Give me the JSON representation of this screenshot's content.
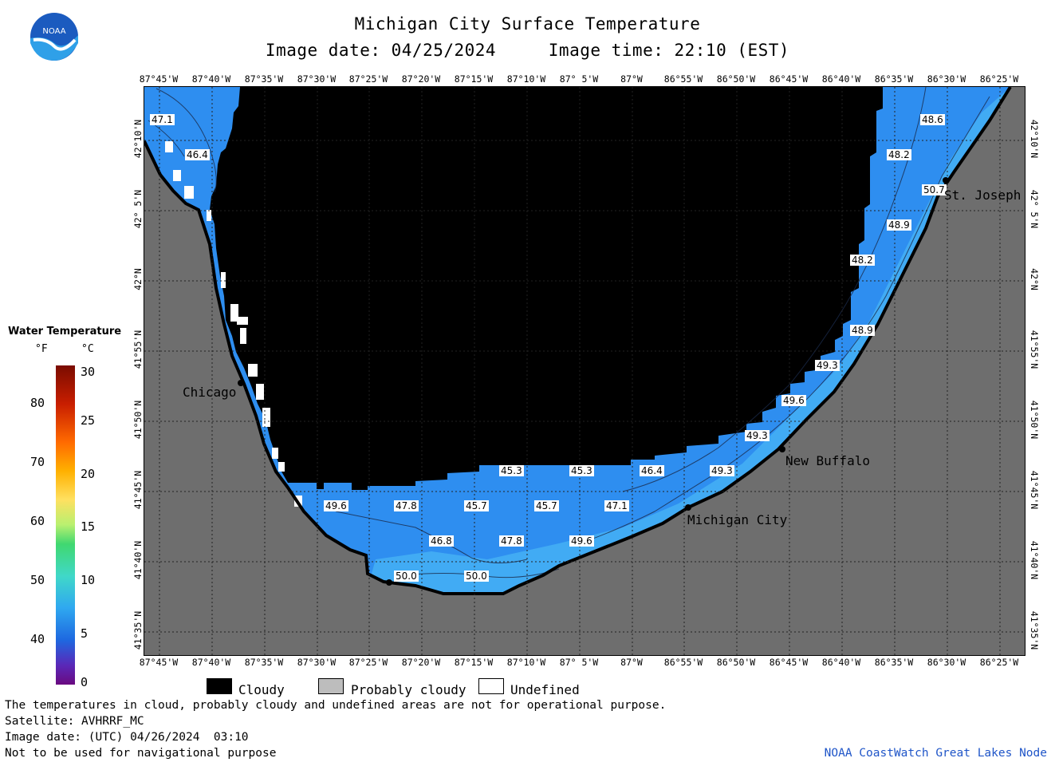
{
  "header": {
    "title": "Michigan City Surface Temperature",
    "subtitle": "Image date: 04/25/2024     Image time: 22:10 (EST)"
  },
  "logo": {
    "text": "NOAA",
    "color": "#1b5bbf"
  },
  "map": {
    "lon_labels": [
      "87°45'W",
      "87°40'W",
      "87°35'W",
      "87°30'W",
      "87°25'W",
      "87°20'W",
      "87°15'W",
      "87°10'W",
      "87° 5'W",
      "87°W",
      "86°55'W",
      "86°50'W",
      "86°45'W",
      "86°40'W",
      "86°35'W",
      "86°30'W",
      "86°25'W"
    ],
    "lat_labels": [
      "42°10'N",
      "42° 5'N",
      "42°N",
      "41°55'N",
      "41°50'N",
      "41°45'N",
      "41°40'N",
      "41°35'N"
    ],
    "cities": [
      {
        "name": "Chicago"
      },
      {
        "name": "St. Joseph"
      },
      {
        "name": "New Buffalo"
      },
      {
        "name": "Michigan City"
      }
    ],
    "temp_labels": [
      "47.1",
      "46.4",
      "48.6",
      "48.2",
      "50.7",
      "48.9",
      "48.2",
      "48.9",
      "49.3",
      "49.6",
      "49.3",
      "49.3",
      "46.4",
      "45.3",
      "45.3",
      "49.6",
      "47.8",
      "45.7",
      "45.7",
      "47.1",
      "46.8",
      "47.8",
      "49.6",
      "50.0",
      "50.0"
    ],
    "colors": {
      "land": "#6e6e6e",
      "cloud": "#000000",
      "water": "#2e8ef0",
      "grid": "#3a3a3a"
    }
  },
  "legend": {
    "title": "Water Temperature",
    "unit_f": "°F",
    "unit_c": "°C",
    "f_ticks": [
      "80",
      "70",
      "60",
      "50",
      "40"
    ],
    "c_ticks": [
      "30",
      "25",
      "20",
      "15",
      "10",
      "5",
      "0"
    ]
  },
  "swatches": [
    {
      "label": "Cloudy",
      "color": "#000000"
    },
    {
      "label": "Probably cloudy",
      "color": "#bdbdbd"
    },
    {
      "label": "Undefined",
      "color": "#ffffff"
    }
  ],
  "notes": {
    "line1": "The temperatures in cloud, probably cloudy and undefined areas are not for operational purpose.",
    "line2": "Satellite: AVHRRF_MC",
    "line3": "Image date: (UTC) 04/26/2024  03:10",
    "line4": "Not to be used for navigational purpose",
    "credit": "NOAA CoastWatch Great Lakes Node"
  }
}
